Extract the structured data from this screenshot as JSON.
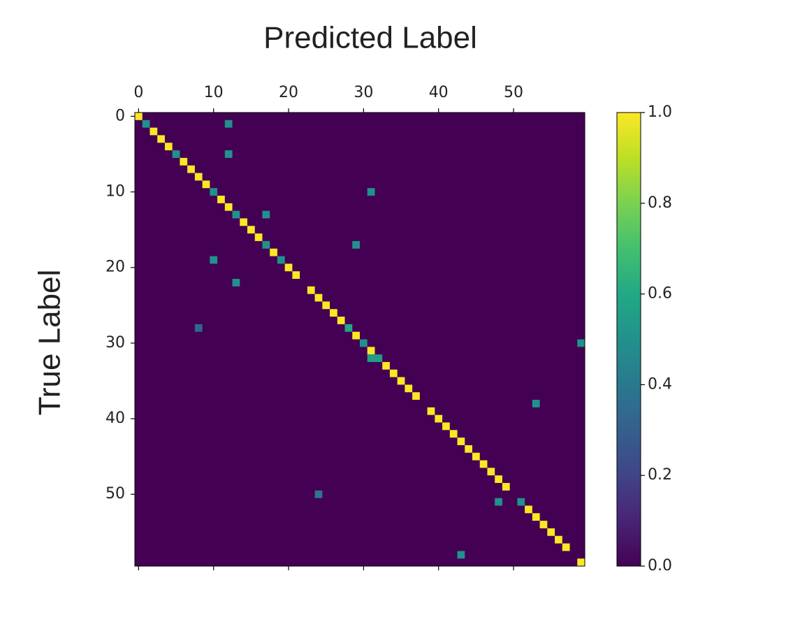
{
  "chart_data": {
    "type": "heatmap",
    "xlabel": "Predicted Label",
    "ylabel": "True Label",
    "cmap": "viridis",
    "xlim": [
      -0.5,
      59.5
    ],
    "ylim": [
      -0.5,
      59.5
    ],
    "xticks": [
      0,
      10,
      20,
      30,
      40,
      50
    ],
    "yticks": [
      0,
      10,
      20,
      30,
      40,
      50
    ],
    "clim": [
      0,
      1
    ],
    "cticks": [
      {
        "value": 0,
        "label": "0.0"
      },
      0.2,
      0.4,
      0.6,
      0.8,
      {
        "value": 1,
        "label": "1.0"
      }
    ],
    "cells": [
      [
        0,
        0,
        1
      ],
      [
        1,
        1,
        0.5
      ],
      [
        1,
        12,
        0.5
      ],
      [
        2,
        2,
        1
      ],
      [
        3,
        3,
        1
      ],
      [
        4,
        4,
        1
      ],
      [
        5,
        5,
        0.5
      ],
      [
        5,
        12,
        0.5
      ],
      [
        6,
        6,
        1
      ],
      [
        7,
        7,
        1
      ],
      [
        8,
        8,
        1
      ],
      [
        9,
        9,
        1
      ],
      [
        10,
        10,
        0.5
      ],
      [
        10,
        31,
        0.5
      ],
      [
        11,
        11,
        1
      ],
      [
        12,
        12,
        1
      ],
      [
        13,
        13,
        0.5
      ],
      [
        13,
        17,
        0.5
      ],
      [
        14,
        14,
        1
      ],
      [
        15,
        15,
        1
      ],
      [
        16,
        16,
        1
      ],
      [
        17,
        17,
        0.5
      ],
      [
        17,
        29,
        0.5
      ],
      [
        18,
        18,
        1
      ],
      [
        19,
        10,
        0.5
      ],
      [
        19,
        19,
        0.5
      ],
      [
        20,
        20,
        1
      ],
      [
        21,
        21,
        1
      ],
      [
        22,
        13,
        0.5
      ],
      [
        23,
        23,
        1
      ],
      [
        24,
        24,
        1
      ],
      [
        25,
        25,
        1
      ],
      [
        26,
        26,
        1
      ],
      [
        27,
        27,
        1
      ],
      [
        28,
        8,
        0.33
      ],
      [
        28,
        28,
        0.6
      ],
      [
        29,
        29,
        1
      ],
      [
        30,
        30,
        0.5
      ],
      [
        30,
        59,
        0.5
      ],
      [
        31,
        31,
        1
      ],
      [
        32,
        31,
        0.55
      ],
      [
        32,
        32,
        0.55
      ],
      [
        33,
        33,
        1
      ],
      [
        34,
        34,
        1
      ],
      [
        35,
        35,
        1
      ],
      [
        36,
        36,
        1
      ],
      [
        37,
        37,
        1
      ],
      [
        38,
        53,
        0.5
      ],
      [
        39,
        39,
        1
      ],
      [
        40,
        40,
        1
      ],
      [
        41,
        41,
        1
      ],
      [
        42,
        42,
        1
      ],
      [
        43,
        43,
        1
      ],
      [
        44,
        44,
        1
      ],
      [
        45,
        45,
        1
      ],
      [
        46,
        46,
        1
      ],
      [
        47,
        47,
        1
      ],
      [
        48,
        48,
        1
      ],
      [
        49,
        49,
        1
      ],
      [
        50,
        24,
        0.4
      ],
      [
        51,
        48,
        0.5
      ],
      [
        51,
        51,
        0.5
      ],
      [
        52,
        52,
        1
      ],
      [
        53,
        53,
        1
      ],
      [
        54,
        54,
        1
      ],
      [
        55,
        55,
        1
      ],
      [
        56,
        56,
        1
      ],
      [
        57,
        57,
        1
      ],
      [
        58,
        43,
        0.5
      ],
      [
        59,
        59,
        1
      ]
    ]
  }
}
